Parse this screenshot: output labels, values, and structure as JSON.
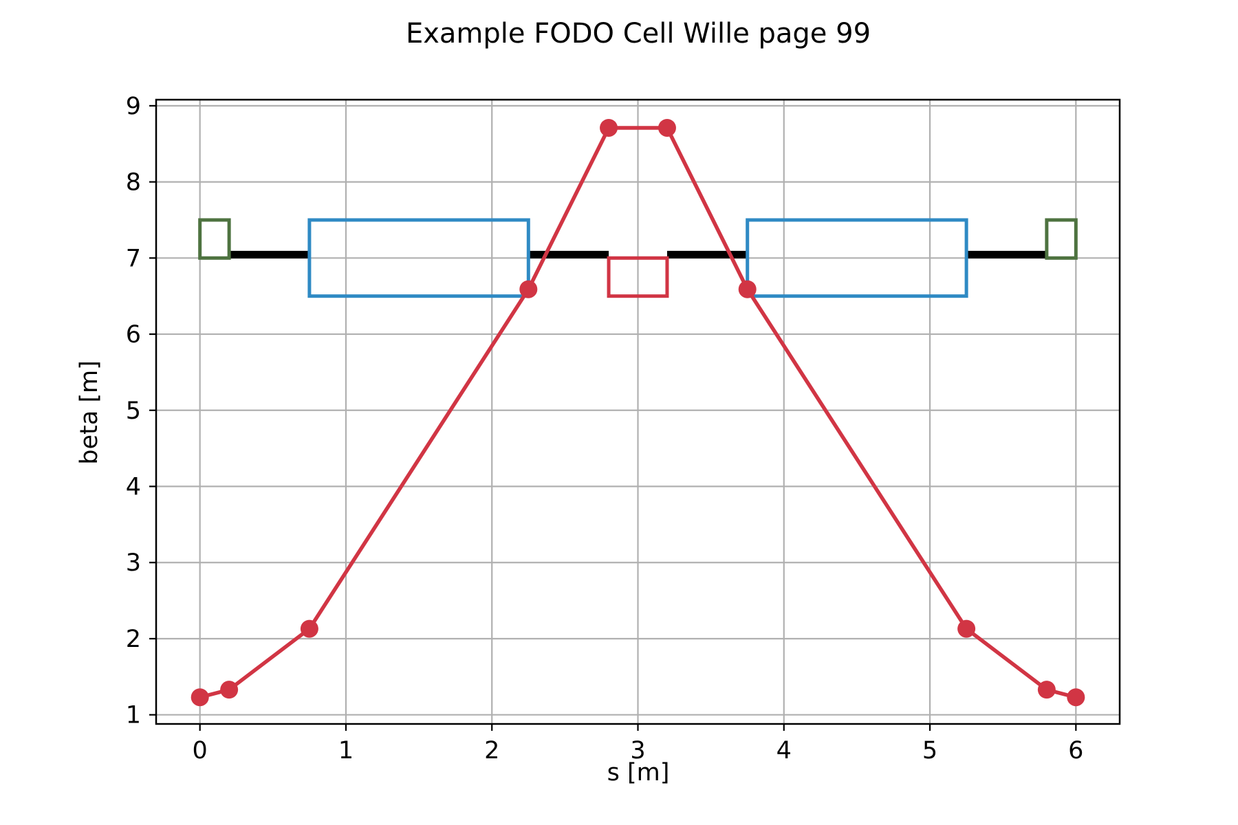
{
  "chart_data": {
    "type": "line",
    "title": "Example FODO Cell Wille page 99",
    "xlabel": "s [m]",
    "ylabel": "beta [m]",
    "xlim": [
      -0.3,
      6.3
    ],
    "ylim": [
      0.88,
      9.08
    ],
    "grid": true,
    "x_ticks": [
      0,
      1,
      2,
      3,
      4,
      5,
      6
    ],
    "y_ticks": [
      1,
      2,
      3,
      4,
      5,
      6,
      7,
      8,
      9
    ],
    "x_tick_labels": [
      "0",
      "1",
      "2",
      "3",
      "4",
      "5",
      "6"
    ],
    "y_tick_labels": [
      "1",
      "2",
      "3",
      "4",
      "5",
      "6",
      "7",
      "8",
      "9"
    ],
    "series": [
      {
        "color": "#d13544",
        "marker": "circle",
        "x": [
          0,
          0.2,
          0.75,
          2.25,
          2.8,
          3.2,
          3.75,
          5.25,
          5.8,
          6.0
        ],
        "y": [
          1.23,
          1.33,
          2.13,
          6.59,
          8.71,
          8.71,
          6.59,
          2.13,
          1.33,
          1.23
        ]
      }
    ],
    "lattice": {
      "axis_y": 7.0,
      "drifts": [
        {
          "x0": 0.2,
          "x1": 0.75
        },
        {
          "x0": 2.25,
          "x1": 2.8
        },
        {
          "x0": 3.2,
          "x1": 3.75
        },
        {
          "x0": 5.25,
          "x1": 5.8
        }
      ],
      "elements": [
        {
          "kind": "half-focusing-quadrupole",
          "x0": 0.0,
          "x1": 0.2,
          "y0": 7.0,
          "y1": 7.5,
          "color": "#4e7340"
        },
        {
          "kind": "dipole",
          "x0": 0.75,
          "x1": 2.25,
          "y0": 6.5,
          "y1": 7.5,
          "color": "#2f8ac4"
        },
        {
          "kind": "defocusing-quadrupole",
          "x0": 2.8,
          "x1": 3.2,
          "y0": 6.5,
          "y1": 7.0,
          "color": "#d13544"
        },
        {
          "kind": "dipole",
          "x0": 3.75,
          "x1": 5.25,
          "y0": 6.5,
          "y1": 7.5,
          "color": "#2f8ac4"
        },
        {
          "kind": "half-focusing-quadrupole",
          "x0": 5.8,
          "x1": 6.0,
          "y0": 7.0,
          "y1": 7.5,
          "color": "#4e7340"
        }
      ],
      "drift_color": "#000000"
    },
    "colors": {
      "grid": "#b0b0b0",
      "axes": "#000000"
    }
  }
}
